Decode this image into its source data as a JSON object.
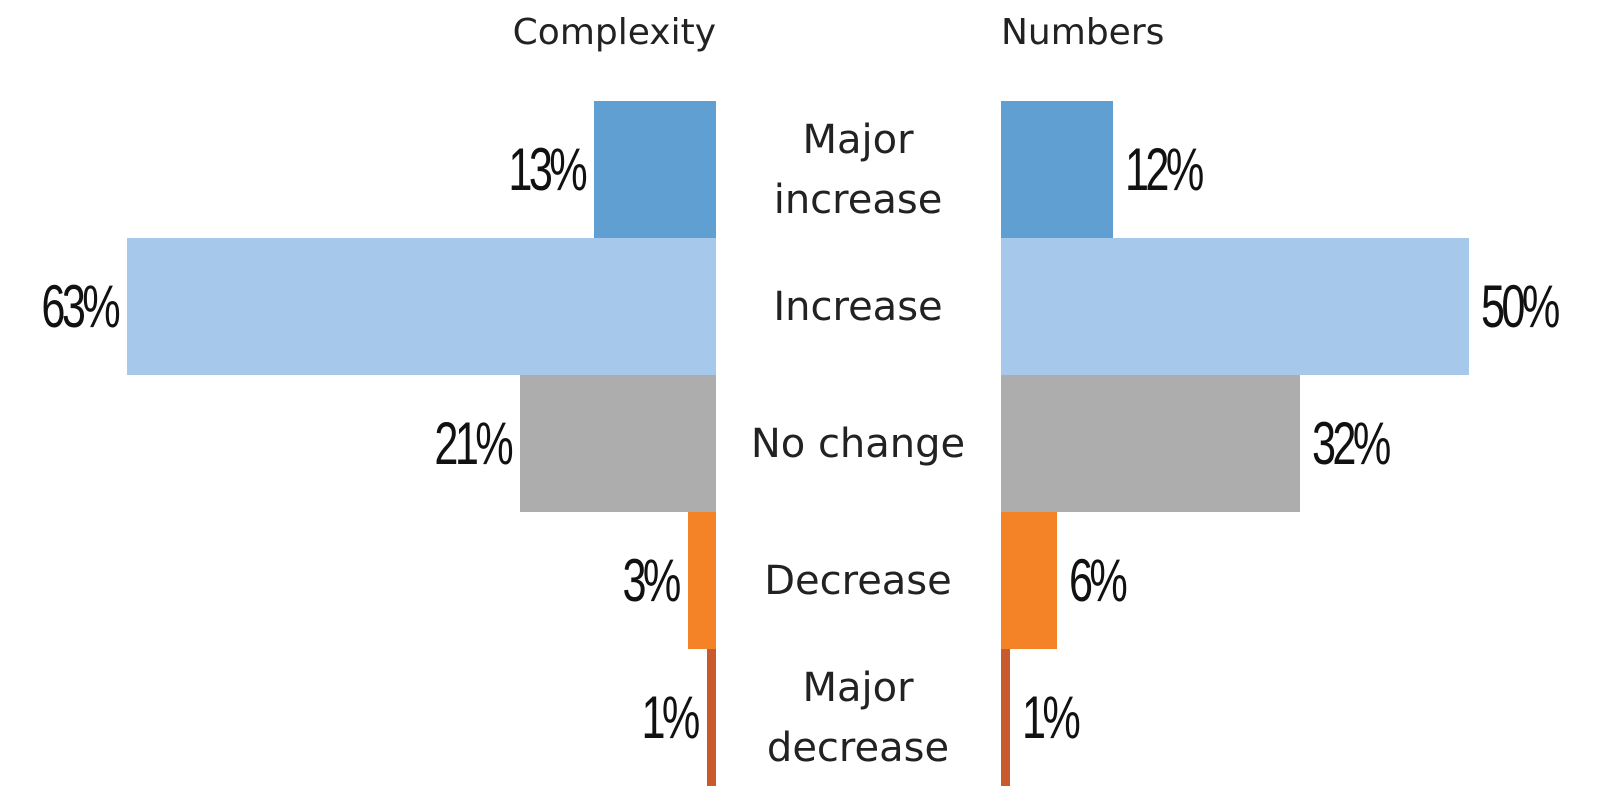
{
  "chart_data": {
    "type": "butterfly",
    "categories": [
      "Major increase",
      "Increase",
      "No change",
      "Decrease",
      "Major decrease"
    ],
    "colors": [
      "#5f9fd2",
      "#a6c8ea",
      "#adadad",
      "#f38326",
      "#c85a2c"
    ],
    "series": [
      {
        "name": "Complexity",
        "side": "left",
        "values": [
          13,
          63,
          21,
          3,
          1
        ],
        "value_labels": [
          "13%",
          "63%",
          "21%",
          "3%",
          "1%"
        ]
      },
      {
        "name": "Numbers",
        "side": "right",
        "values": [
          12,
          50,
          32,
          6,
          1
        ],
        "value_labels": [
          "12%",
          "50%",
          "32%",
          "6%",
          "1%"
        ]
      }
    ]
  }
}
